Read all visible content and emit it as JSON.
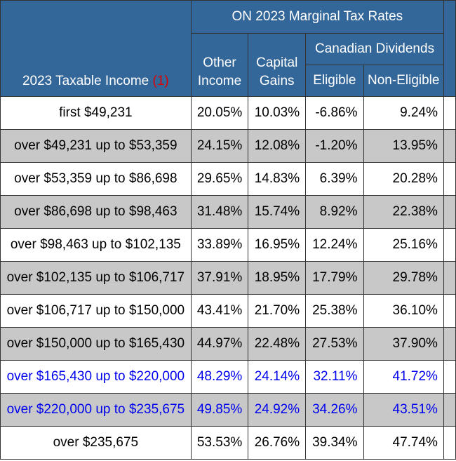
{
  "header": {
    "title": "ON 2023 Marginal Tax Rates",
    "income_label": "2023 Taxable Income",
    "income_note": "(1)",
    "other_line1": "Other",
    "other_line2": "Income",
    "capital_line1": "Capital",
    "capital_line2": "Gains",
    "dividends": "Canadian Dividends",
    "eligible": "Eligible",
    "non_eligible": "Non-Eligible"
  },
  "colors": {
    "header_bg": "#336699",
    "header_text": "#ffffff",
    "shaded_row": "#c8c8c8",
    "note_red": "#e00000",
    "blue_text": "#0000ee"
  },
  "rows": [
    {
      "income": "first $49,231",
      "other": "20.05%",
      "capital": "10.03%",
      "eligible": "-6.86%",
      "non_eligible": "9.24%"
    },
    {
      "income": "over $49,231 up to $53,359",
      "other": "24.15%",
      "capital": "12.08%",
      "eligible": "-1.20%",
      "non_eligible": "13.95%"
    },
    {
      "income": "over $53,359 up to $86,698",
      "other": "29.65%",
      "capital": "14.83%",
      "eligible": "6.39%",
      "non_eligible": "20.28%"
    },
    {
      "income": "over $86,698 up to $98,463",
      "other": "31.48%",
      "capital": "15.74%",
      "eligible": "8.92%",
      "non_eligible": "22.38%"
    },
    {
      "income": "over $98,463 up to $102,135",
      "other": "33.89%",
      "capital": "16.95%",
      "eligible": "12.24%",
      "non_eligible": "25.16%"
    },
    {
      "income": "over $102,135 up to $106,717",
      "other": "37.91%",
      "capital": "18.95%",
      "eligible": "17.79%",
      "non_eligible": "29.78%"
    },
    {
      "income": "over $106,717 up to $150,000",
      "other": "43.41%",
      "capital": "21.70%",
      "eligible": "25.38%",
      "non_eligible": "36.10%"
    },
    {
      "income": "over $150,000 up to $165,430",
      "other": "44.97%",
      "capital": "22.48%",
      "eligible": "27.53%",
      "non_eligible": "37.90%"
    },
    {
      "income": "over $165,430 up to $220,000",
      "other": "48.29%",
      "capital": "24.14%",
      "eligible": "32.11%",
      "non_eligible": "41.72%"
    },
    {
      "income": "over $220,000 up to $235,675",
      "other": "49.85%",
      "capital": "24.92%",
      "eligible": "34.26%",
      "non_eligible": "43.51%"
    },
    {
      "income": "over $235,675",
      "other": "53.53%",
      "capital": "26.76%",
      "eligible": "39.34%",
      "non_eligible": "47.74%"
    }
  ]
}
